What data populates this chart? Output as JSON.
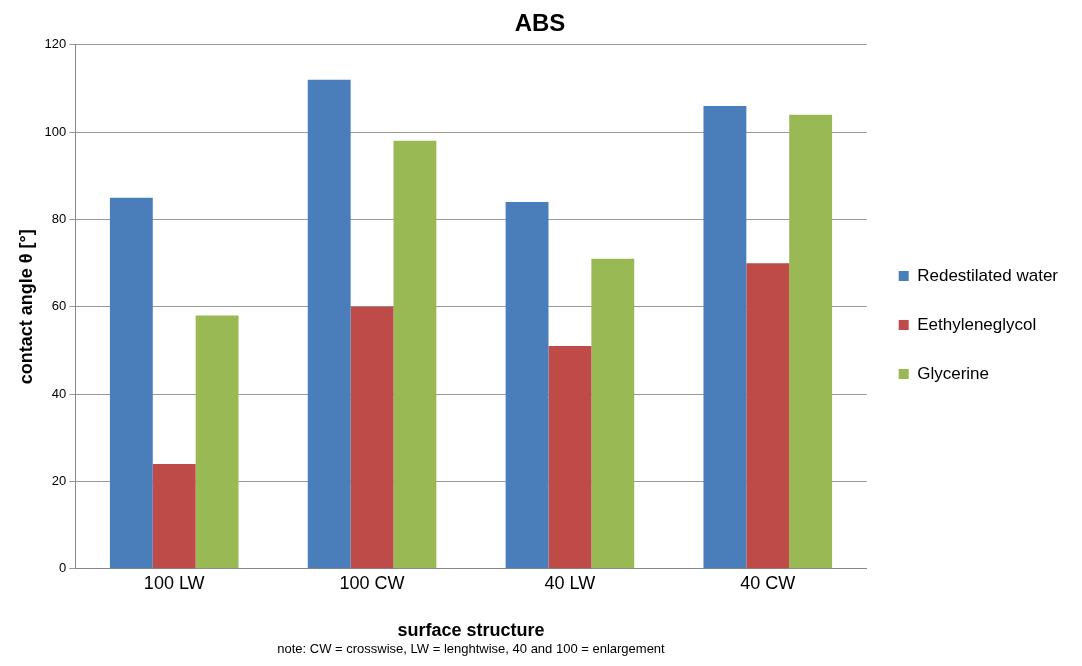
{
  "chart_data": {
    "type": "bar",
    "title": "ABS",
    "xlabel": "surface structure",
    "ylabel": "contact angle θ [°]",
    "categories": [
      "100 LW",
      "100 CW",
      "40 LW",
      "40 CW"
    ],
    "series": [
      {
        "name": "Redestilated water",
        "color": "#4a7ebb",
        "values": [
          85,
          112,
          84,
          106
        ]
      },
      {
        "name": "Eethyleneglycol",
        "color": "#be4b48",
        "values": [
          24,
          60,
          51,
          70
        ]
      },
      {
        "name": "Glycerine",
        "color": "#98b954",
        "values": [
          58,
          98,
          71,
          104
        ]
      }
    ],
    "ylim": [
      0,
      120
    ],
    "yticks": [
      0,
      20,
      40,
      60,
      80,
      100,
      120
    ],
    "grid": "y",
    "legend": "right",
    "annotations": [
      "note: CW = crosswise, LW = lenghtwise, 40 and 100 = enlargement"
    ]
  }
}
